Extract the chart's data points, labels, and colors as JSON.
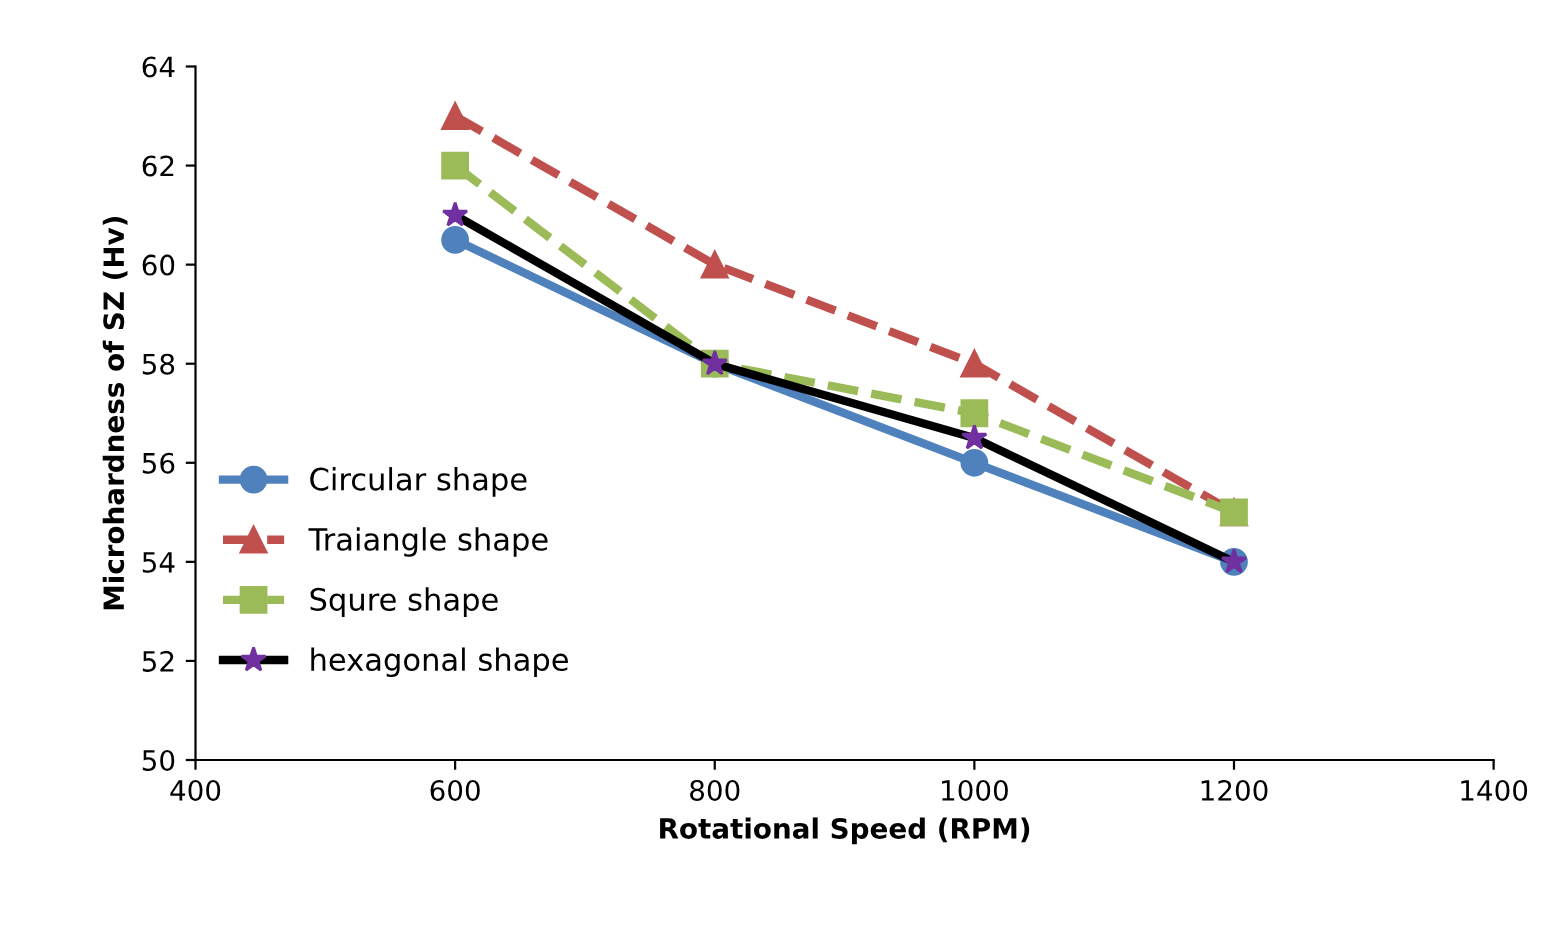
{
  "chart_data": {
    "type": "line",
    "xlabel": "Rotational Speed (RPM)",
    "ylabel": "Microhardness of SZ (Hv)",
    "x": [
      600,
      800,
      1000,
      1200
    ],
    "xlim": [
      400,
      1400
    ],
    "xticks": [
      400,
      600,
      800,
      1000,
      1200,
      1400
    ],
    "ylim": [
      50,
      64
    ],
    "yticks": [
      50,
      52,
      54,
      56,
      58,
      60,
      62,
      64
    ],
    "grid": false,
    "legend": "bottom left",
    "series": [
      {
        "name": "Circular shape",
        "color": "#4f81bd",
        "values": [
          60.5,
          58,
          56,
          54
        ],
        "marker": "circle",
        "line_style": "solid"
      },
      {
        "name": "Traiangle shape",
        "color": "#c0504d",
        "values": [
          63,
          60,
          58,
          55
        ],
        "marker": "triangle",
        "line_style": "dashed"
      },
      {
        "name": "Squre shape",
        "color": "#9bbb59",
        "values": [
          62,
          58,
          57,
          55
        ],
        "marker": "square",
        "line_style": "dashed"
      },
      {
        "name": "hexagonal shape",
        "color": "#000000",
        "values": [
          61,
          58,
          56.5,
          54
        ],
        "marker": "star",
        "line_style": "solid"
      }
    ]
  }
}
